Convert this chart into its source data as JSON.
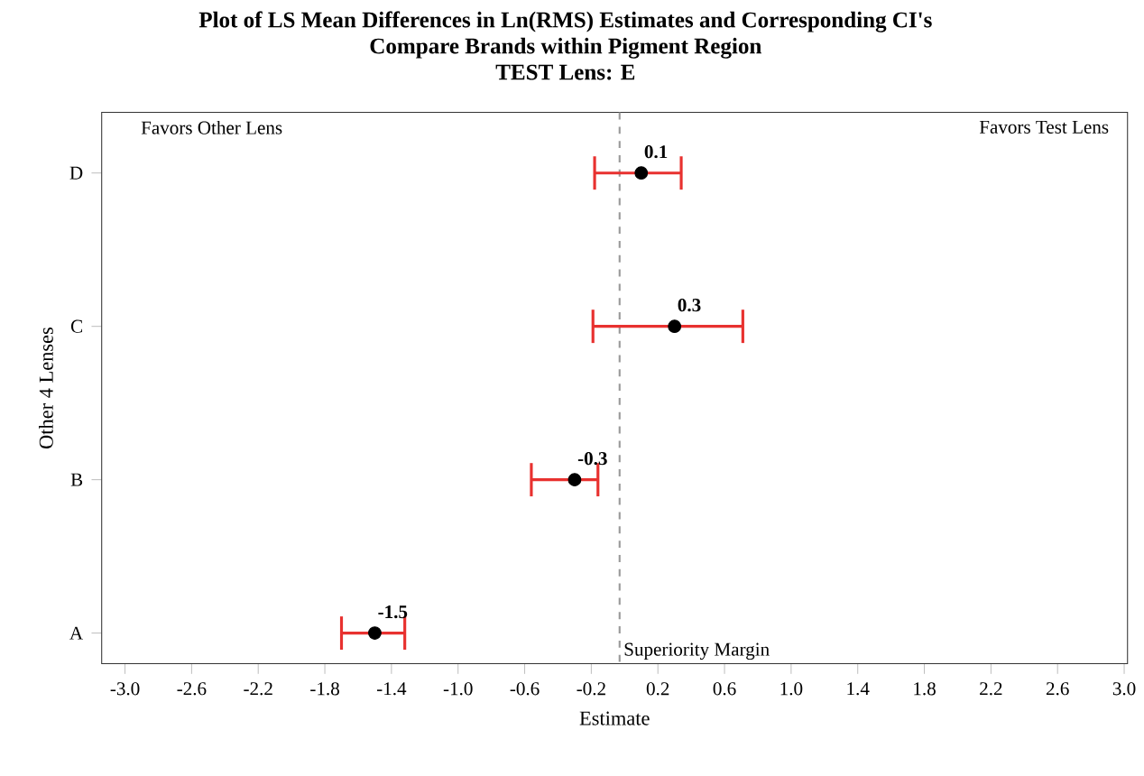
{
  "chart_data": {
    "type": "scatter",
    "orientation": "horizontal",
    "title": "Plot of LS Mean Differences in Ln(RMS) Estimates and Corresponding CI's",
    "subtitle": "Compare Brands within Pigment Region",
    "annotations": [
      "TEST Lens: E",
      "Favors Other Lens",
      "Favors Test Lens"
    ],
    "xlabel": "Estimate",
    "ylabel": "Other 4 Lenses",
    "categories": [
      "D",
      "C",
      "B",
      "A"
    ],
    "values": [
      0.1,
      0.3,
      -0.3,
      -1.5
    ],
    "errors": [
      [
        -0.18,
        0.34
      ],
      [
        -0.19,
        0.71
      ],
      [
        -0.56,
        -0.16
      ],
      [
        -1.7,
        -1.32
      ]
    ],
    "color": "#000000",
    "marker": "circle",
    "data_labels": true,
    "grid": false,
    "xlim": [
      -3.14,
      3.02
    ],
    "xticks": [
      {
        "value": -3.0,
        "label": "-3.0"
      },
      {
        "value": -2.6,
        "label": "-2.6"
      },
      {
        "value": -2.2,
        "label": "-2.2"
      },
      {
        "value": -1.8,
        "label": "-1.8"
      },
      {
        "value": -1.4,
        "label": "-1.4"
      },
      {
        "value": -1.0,
        "label": "-1.0"
      },
      {
        "value": -0.6,
        "label": "-0.6"
      },
      {
        "value": -0.2,
        "label": "-0.2"
      },
      {
        "value": 0.2,
        "label": "0.2"
      },
      {
        "value": 0.6,
        "label": "0.6"
      },
      {
        "value": 1.0,
        "label": "1.0"
      },
      {
        "value": 1.4,
        "label": "1.4"
      },
      {
        "value": 1.8,
        "label": "1.8"
      },
      {
        "value": 2.2,
        "label": "2.2"
      },
      {
        "value": 2.6,
        "label": "2.6"
      },
      {
        "value": 3.0,
        "label": "3.0"
      }
    ],
    "ref_lines": [
      {
        "axis": "x",
        "value": -0.03,
        "label": "Superiority Margin",
        "color": "#999999",
        "line_style": "dashed"
      }
    ]
  }
}
